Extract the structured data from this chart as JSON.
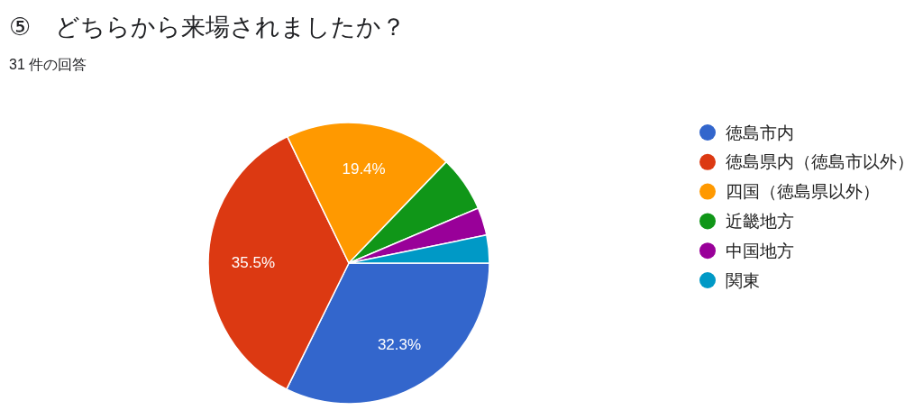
{
  "chart_data": {
    "type": "pie",
    "title": "⑤　どちらから来場されましたか？",
    "subtitle": "31 件の回答",
    "categories": [
      "徳島市内",
      "徳島県内（徳島市以外）",
      "四国（徳島県以外）",
      "近畿地方",
      "中国地方",
      "関東"
    ],
    "values": [
      32.3,
      35.5,
      19.4,
      6.4,
      3.2,
      3.2
    ],
    "colors": [
      "#3366cc",
      "#dc3912",
      "#ff9900",
      "#109618",
      "#990099",
      "#0099c6"
    ],
    "value_labels": [
      "32.3%",
      "35.5%",
      "19.4%",
      null,
      null,
      null
    ],
    "legend": "right"
  }
}
